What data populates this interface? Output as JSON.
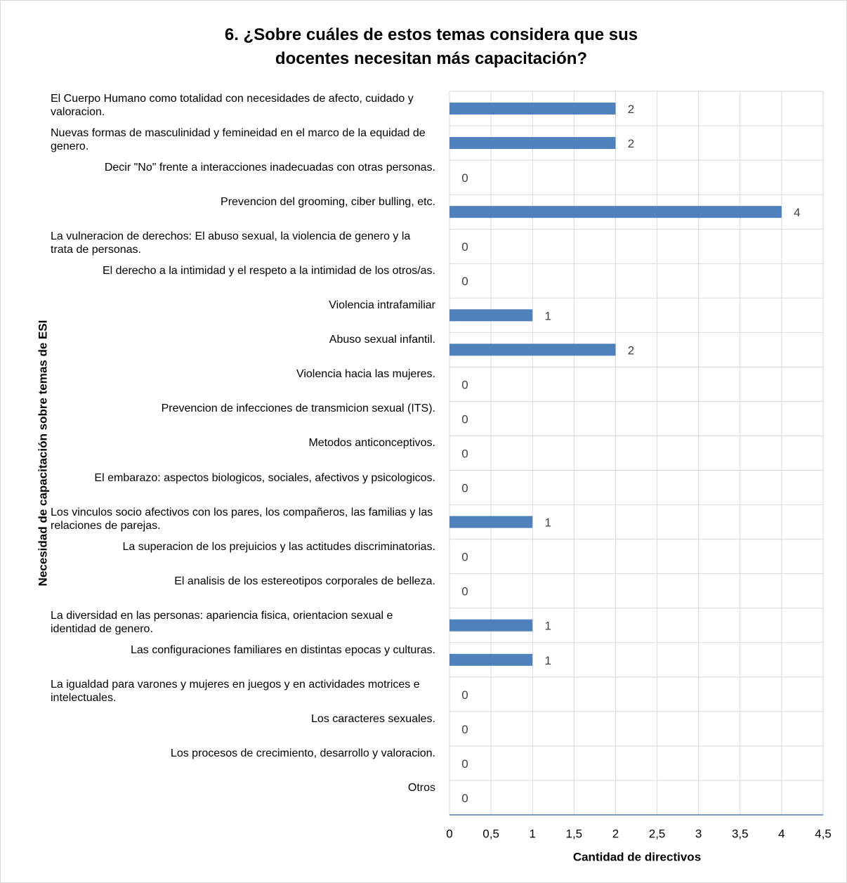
{
  "chart_data": {
    "type": "bar",
    "orientation": "horizontal",
    "title": "6. ¿Sobre cuáles de estos temas considera que sus docentes necesitan más capacitación?",
    "xlabel": "Cantidad de directivos",
    "ylabel": "Necesidad de capacitación sobre temas de ESI",
    "categories": [
      "El Cuerpo Humano como totalidad con necesidades de afecto, cuidado y valoracion.",
      "Nuevas formas de masculinidad y femineidad en el marco de la equidad de genero.",
      "Decir \"No\" frente a interacciones inadecuadas con otras personas.",
      "Prevencion del grooming, ciber bulling, etc.",
      "La vulneracion de derechos: El abuso sexual, la violencia de genero y la trata de personas.",
      "El derecho a la intimidad y el respeto a la intimidad de los otros/as.",
      "Violencia intrafamiliar",
      "Abuso sexual infantil.",
      "Violencia hacia las mujeres.",
      "Prevencion de infecciones de transmicion sexual (ITS).",
      "Metodos anticonceptivos.",
      "El embarazo: aspectos biologicos, sociales, afectivos y psicologicos.",
      "Los vinculos socio afectivos con los pares, los compañeros, las familias y las relaciones de parejas.",
      "La superacion de los prejuicios y las actitudes discriminatorias.",
      "El analisis de los estereotipos corporales de belleza.",
      "La diversidad en las personas: apariencia fisica, orientacion sexual e identidad de genero.",
      "Las configuraciones familiares en distintas epocas y culturas.",
      "La igualdad para varones y mujeres en juegos y en actividades motrices e intelectuales.",
      "Los caracteres sexuales.",
      "Los procesos de crecimiento, desarrollo y valoracion.",
      "Otros"
    ],
    "values": [
      2,
      2,
      0,
      4,
      0,
      0,
      1,
      2,
      0,
      0,
      0,
      0,
      1,
      0,
      0,
      1,
      1,
      0,
      0,
      0,
      0
    ],
    "color": "#4f81bd",
    "xlim": [
      0,
      4.5
    ],
    "xticks": [
      0,
      {
        "value": 0.5,
        "label": "0,5"
      },
      1,
      {
        "value": 1.5,
        "label": "1,5"
      },
      2,
      {
        "value": 2.5,
        "label": "2,5"
      },
      3,
      {
        "value": 3.5,
        "label": "3,5"
      },
      4,
      {
        "value": 4.5,
        "label": "4,5"
      }
    ],
    "grid": true
  }
}
